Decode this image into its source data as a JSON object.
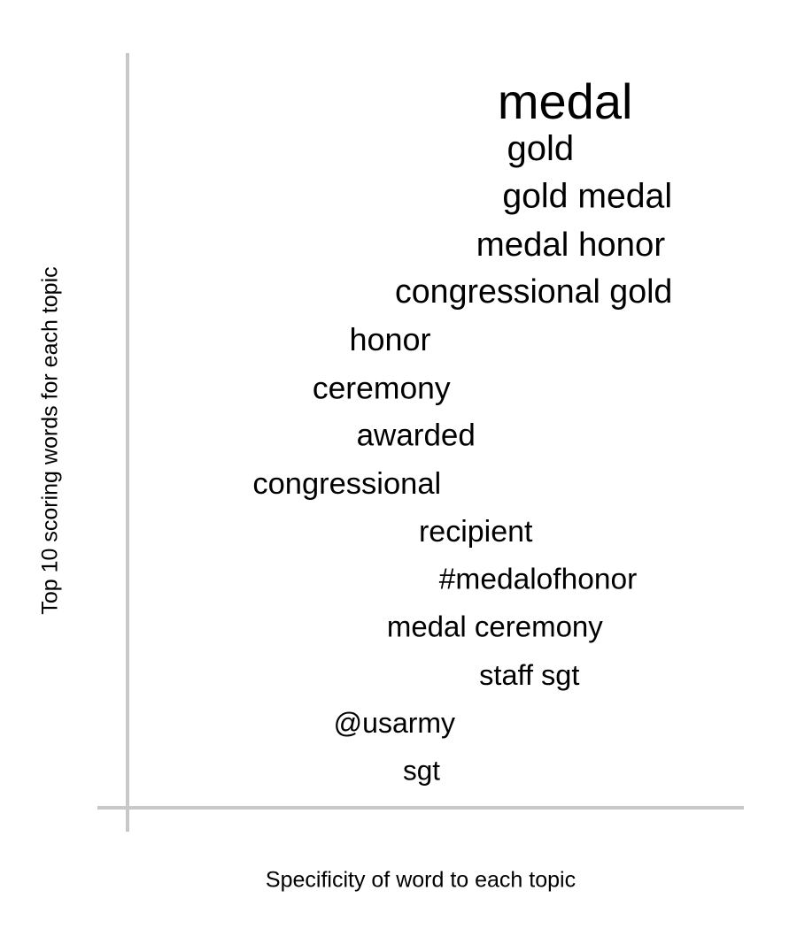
{
  "chart_data": {
    "type": "scatter",
    "title": "",
    "xlabel": "Specificity of word to each topic",
    "ylabel": "Top 10 scoring words for each topic",
    "grid": false,
    "legend": "none",
    "xlim": [
      0,
      1
    ],
    "ylim": [
      0,
      1
    ],
    "points": [
      {
        "label": "medal",
        "x": 0.71,
        "y": 0.936
      },
      {
        "label": "gold",
        "x": 0.67,
        "y": 0.873
      },
      {
        "label": "gold medal",
        "x": 0.746,
        "y": 0.81
      },
      {
        "label": "medal honor",
        "x": 0.719,
        "y": 0.746
      },
      {
        "label": "congressional gold",
        "x": 0.659,
        "y": 0.683
      },
      {
        "label": "honor",
        "x": 0.426,
        "y": 0.62
      },
      {
        "label": "ceremony",
        "x": 0.412,
        "y": 0.556
      },
      {
        "label": "awarded",
        "x": 0.468,
        "y": 0.493
      },
      {
        "label": "congressional",
        "x": 0.356,
        "y": 0.429
      },
      {
        "label": "recipient",
        "x": 0.565,
        "y": 0.366
      },
      {
        "label": "#medalofhonor",
        "x": 0.666,
        "y": 0.303
      },
      {
        "label": "medal ceremony",
        "x": 0.596,
        "y": 0.24
      },
      {
        "label": "staff sgt",
        "x": 0.652,
        "y": 0.176
      },
      {
        "label": "@usarmy",
        "x": 0.433,
        "y": 0.112
      },
      {
        "label": "sgt",
        "x": 0.477,
        "y": 0.049
      }
    ],
    "colors": {
      "text": "#000000",
      "axis": "#c8c8c8"
    }
  }
}
